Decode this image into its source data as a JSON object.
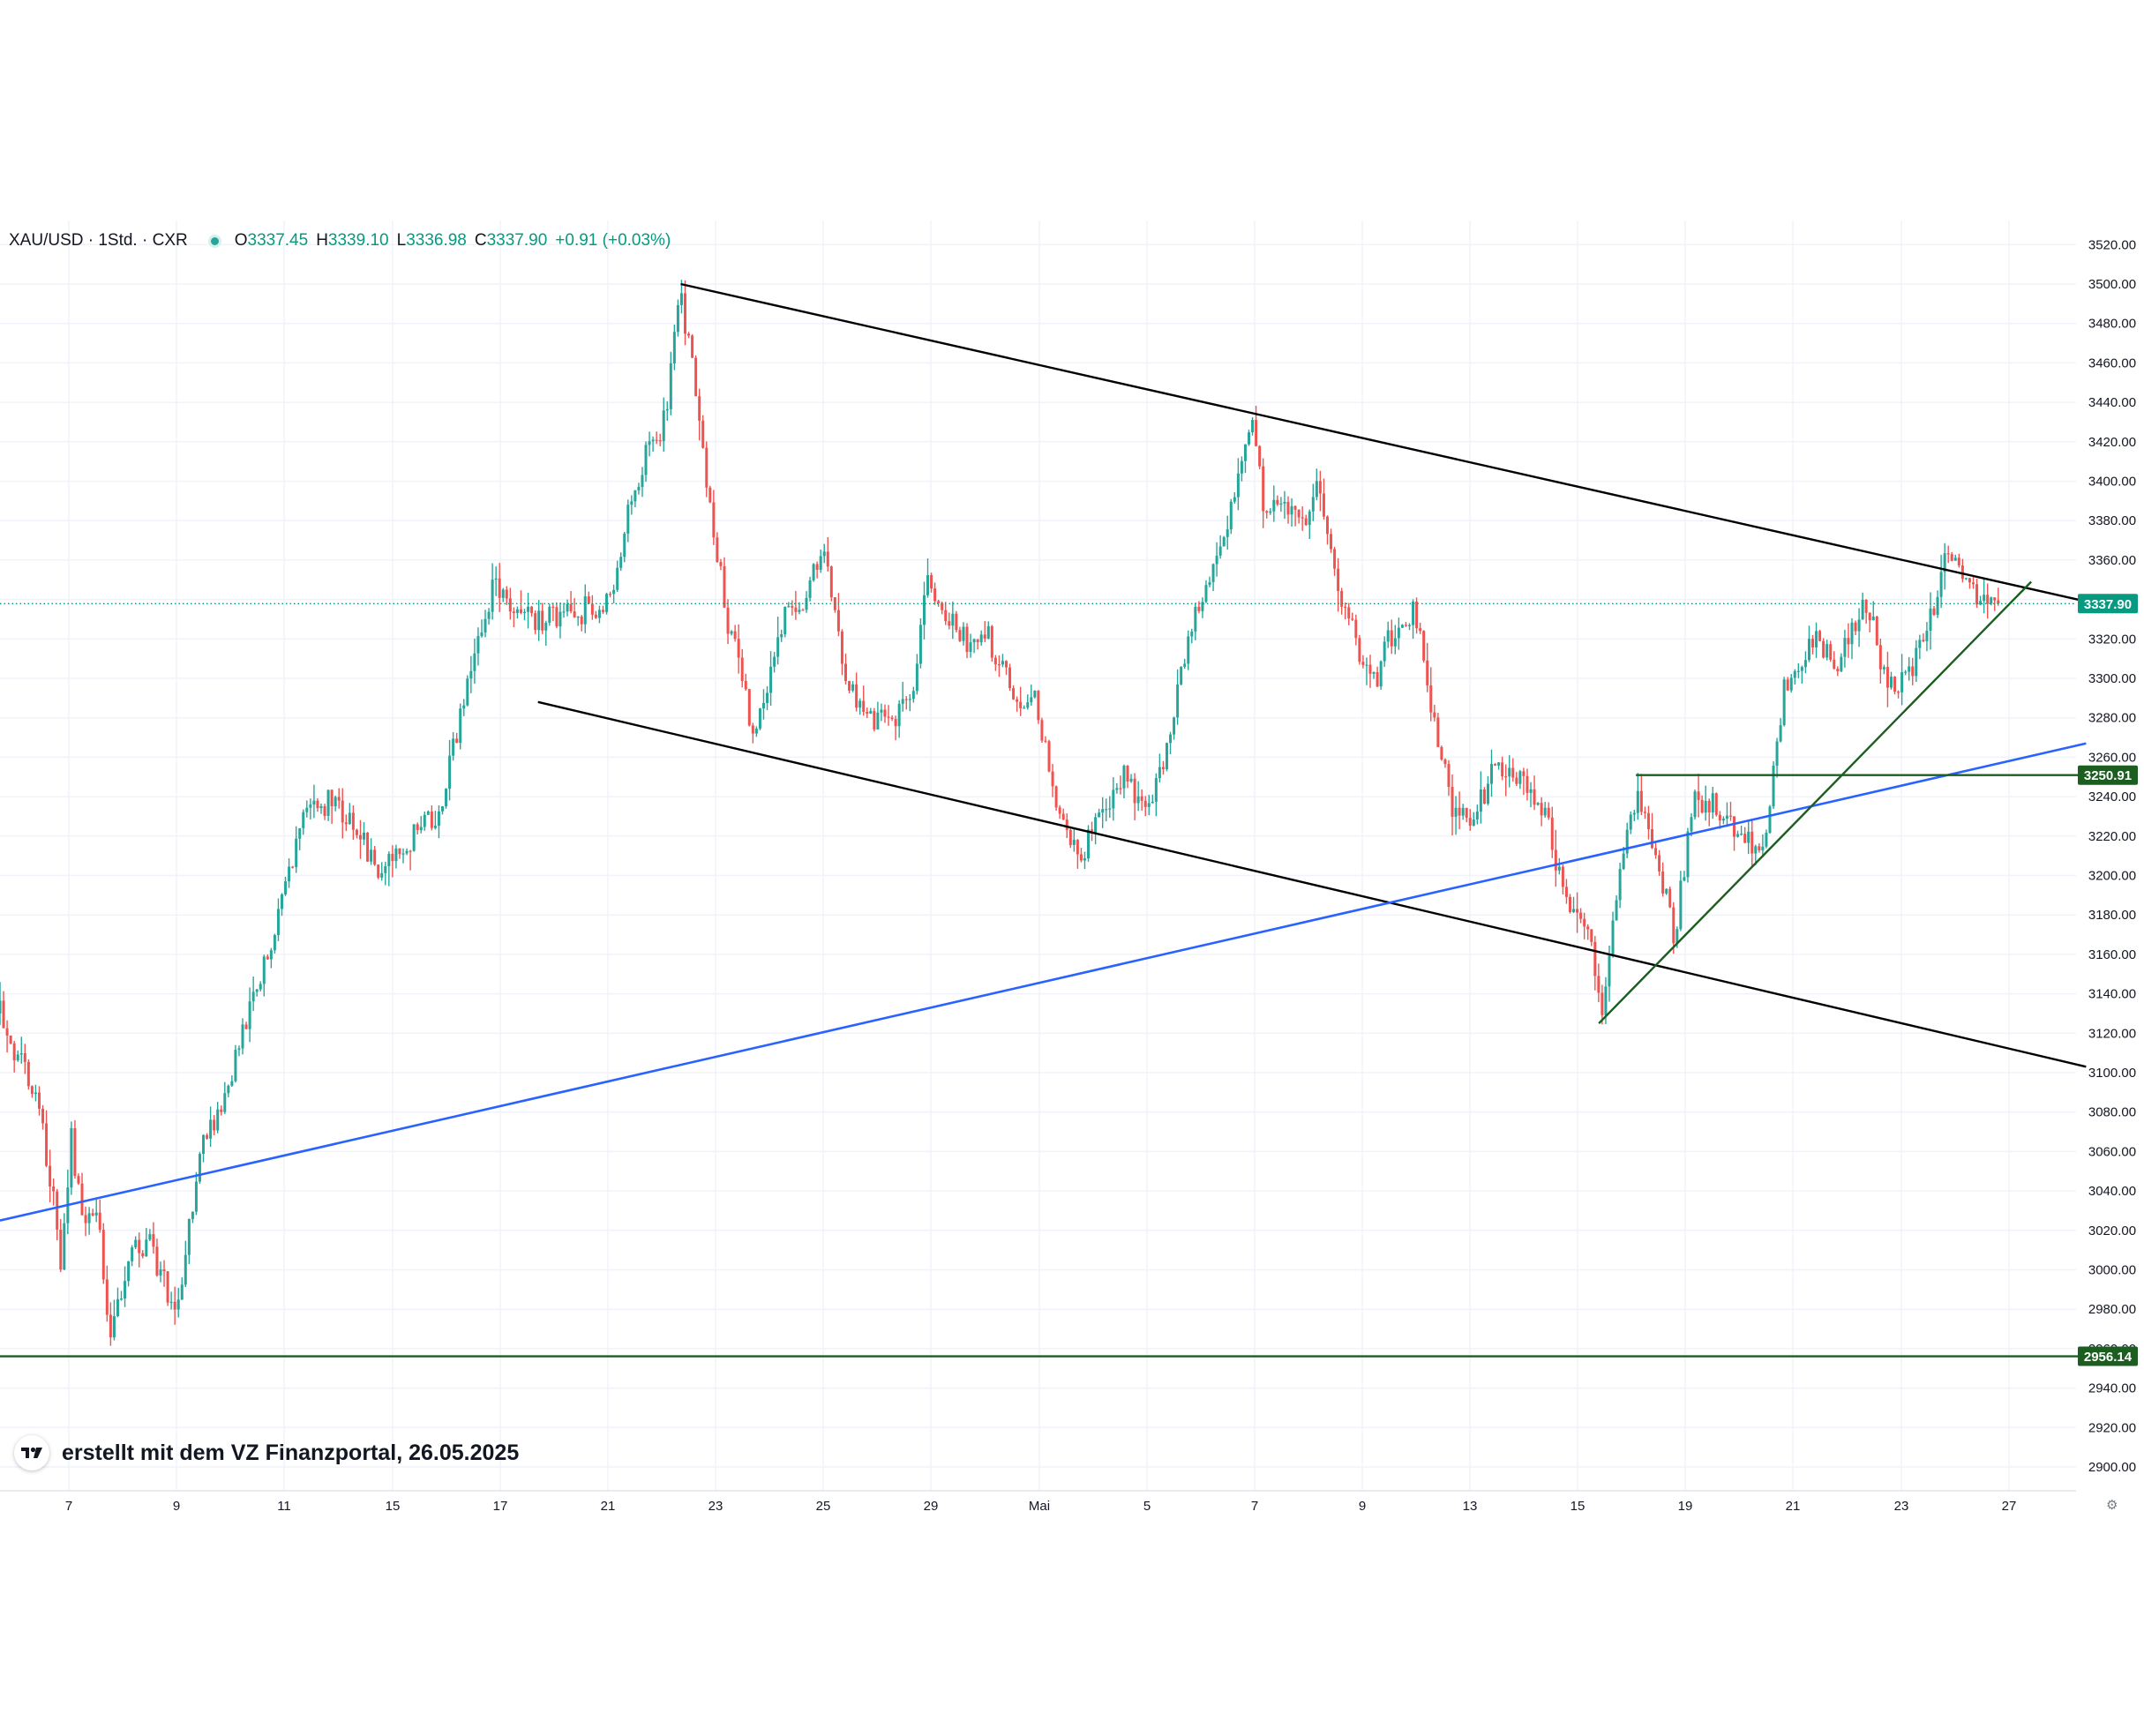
{
  "header": {
    "symbol": "XAU/USD · 1Std. · CXR",
    "open_label": "O",
    "open": "3337.45",
    "high_label": "H",
    "high": "3339.10",
    "low_label": "L",
    "low": "3336.98",
    "close_label": "C",
    "close": "3337.90",
    "change": "+0.91 (+0.03%)"
  },
  "watermark": {
    "text": "erstellt mit dem VZ Finanzportal, 26.05.2025",
    "logo_icon": "tradingview-logo-icon"
  },
  "settings_icon": "settings-gear-icon",
  "colors": {
    "up": "#26a69a",
    "down": "#ef5350",
    "trendline": "#000000",
    "support_line": "#1b5e20",
    "blue_line": "#2962ff",
    "price_badge": "#089981"
  },
  "chart_data": {
    "type": "candlestick",
    "symbol": "XAU/USD",
    "interval": "1Std.",
    "ylim": [
      2890,
      3525
    ],
    "y_ticks": [
      2900,
      2920,
      2940,
      2960,
      2980,
      3000,
      3020,
      3040,
      3060,
      3080,
      3100,
      3120,
      3140,
      3160,
      3180,
      3200,
      3220,
      3240,
      3260,
      3280,
      3300,
      3320,
      3340,
      3360,
      3380,
      3400,
      3420,
      3440,
      3460,
      3480,
      3500,
      3520
    ],
    "x_tick_labels": [
      "7",
      "9",
      "11",
      "15",
      "17",
      "21",
      "23",
      "25",
      "29",
      "Mai",
      "5",
      "7",
      "9",
      "13",
      "15",
      "19",
      "21",
      "23",
      "27"
    ],
    "grid": true,
    "current_price": "3337.90",
    "price_labels": [
      {
        "value": 3250.91,
        "label": "3250.91",
        "color": "#1b5e20"
      },
      {
        "value": 2956.14,
        "label": "2956.14",
        "color": "#1b5e20"
      }
    ],
    "anchors": [
      [
        0,
        3130
      ],
      [
        12,
        3110
      ],
      [
        25,
        3090
      ],
      [
        35,
        3055
      ],
      [
        45,
        3000
      ],
      [
        52,
        3065
      ],
      [
        60,
        3030
      ],
      [
        72,
        3030
      ],
      [
        80,
        2960
      ],
      [
        92,
        3005
      ],
      [
        108,
        3015
      ],
      [
        118,
        2995
      ],
      [
        130,
        2980
      ],
      [
        145,
        3060
      ],
      [
        165,
        3090
      ],
      [
        180,
        3130
      ],
      [
        205,
        3185
      ],
      [
        225,
        3240
      ],
      [
        245,
        3235
      ],
      [
        262,
        3220
      ],
      [
        275,
        3205
      ],
      [
        300,
        3220
      ],
      [
        320,
        3230
      ],
      [
        340,
        3295
      ],
      [
        360,
        3350
      ],
      [
        375,
        3330
      ],
      [
        395,
        3330
      ],
      [
        410,
        3330
      ],
      [
        445,
        3340
      ],
      [
        455,
        3375
      ],
      [
        472,
        3420
      ],
      [
        485,
        3430
      ],
      [
        495,
        3495
      ],
      [
        505,
        3460
      ],
      [
        515,
        3400
      ],
      [
        530,
        3330
      ],
      [
        550,
        3270
      ],
      [
        570,
        3330
      ],
      [
        585,
        3340
      ],
      [
        600,
        3365
      ],
      [
        615,
        3300
      ],
      [
        630,
        3280
      ],
      [
        650,
        3280
      ],
      [
        665,
        3295
      ],
      [
        675,
        3350
      ],
      [
        690,
        3330
      ],
      [
        705,
        3320
      ],
      [
        720,
        3320
      ],
      [
        740,
        3290
      ],
      [
        755,
        3290
      ],
      [
        770,
        3230
      ],
      [
        785,
        3210
      ],
      [
        800,
        3225
      ],
      [
        820,
        3250
      ],
      [
        835,
        3230
      ],
      [
        850,
        3265
      ],
      [
        865,
        3320
      ],
      [
        885,
        3360
      ],
      [
        900,
        3390
      ],
      [
        912,
        3430
      ],
      [
        920,
        3390
      ],
      [
        935,
        3385
      ],
      [
        950,
        3375
      ],
      [
        960,
        3405
      ],
      [
        968,
        3365
      ],
      [
        985,
        3325
      ],
      [
        1000,
        3295
      ],
      [
        1015,
        3325
      ],
      [
        1030,
        3335
      ],
      [
        1045,
        3280
      ],
      [
        1060,
        3230
      ],
      [
        1075,
        3230
      ],
      [
        1090,
        3255
      ],
      [
        1110,
        3250
      ],
      [
        1125,
        3235
      ],
      [
        1140,
        3190
      ],
      [
        1155,
        3180
      ],
      [
        1168,
        3130
      ],
      [
        1180,
        3205
      ],
      [
        1195,
        3240
      ],
      [
        1210,
        3200
      ],
      [
        1220,
        3170
      ],
      [
        1235,
        3240
      ],
      [
        1250,
        3235
      ],
      [
        1270,
        3220
      ],
      [
        1285,
        3210
      ],
      [
        1300,
        3295
      ],
      [
        1320,
        3320
      ],
      [
        1340,
        3310
      ],
      [
        1360,
        3340
      ],
      [
        1375,
        3295
      ],
      [
        1390,
        3300
      ],
      [
        1410,
        3340
      ],
      [
        1420,
        3365
      ],
      [
        1435,
        3345
      ],
      [
        1450,
        3335
      ],
      [
        1457,
        3338
      ]
    ],
    "lines": [
      {
        "name": "",
        "color": "#000000",
        "p1": [
          496,
          3500
        ],
        "p2": [
          1520,
          3339
        ]
      },
      {
        "name": "",
        "color": "#000000",
        "p1": [
          392,
          3288
        ],
        "p2": [
          1520,
          3103
        ]
      },
      {
        "name": "",
        "color": "#2962ff",
        "p1": [
          0,
          3025
        ],
        "p2": [
          1520,
          3267
        ]
      },
      {
        "name": "",
        "color": "#1b5e20",
        "p1": [
          1165,
          3125
        ],
        "p2": [
          1480,
          3349
        ]
      },
      {
        "name": "",
        "color": "#1b5e20",
        "p1": [
          1192,
          3250.91
        ],
        "p2": [
          1520,
          3250.91
        ]
      },
      {
        "name": "",
        "color": "#1b5e20",
        "p1": [
          0,
          2956.14
        ],
        "p2": [
          1520,
          2956.14
        ]
      }
    ]
  }
}
